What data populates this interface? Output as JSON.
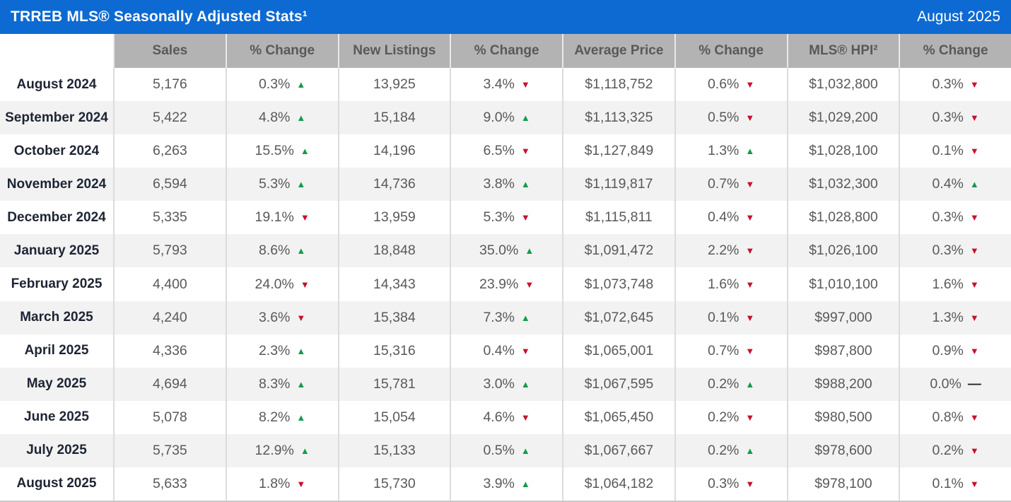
{
  "title_bar": {
    "title": "TRREB MLS® Seasonally Adjusted Stats¹",
    "date": "August 2025"
  },
  "colors": {
    "accent_blue": "#0d6ad2",
    "header_gray": "#b3b3b3",
    "header_text": "#595959",
    "label_text": "#1d2433",
    "value_text": "#595959",
    "up_green": "#149b4a",
    "down_red": "#c8102e",
    "row_alt": "#f2f2f2",
    "divider": "#dcdcdc",
    "bottom_border": "#c9c9c9"
  },
  "table": {
    "columns": [
      "",
      "Sales",
      "% Change",
      "New Listings",
      "% Change",
      "Average Price",
      "% Change",
      "MLS® HPI²",
      "% Change"
    ],
    "icons": {
      "up": "▲",
      "down": "▼",
      "flat": "—"
    },
    "rows": [
      {
        "month": "August 2024",
        "cells": [
          {
            "text": "5,176"
          },
          {
            "text": "0.3%",
            "dir": "up"
          },
          {
            "text": "13,925"
          },
          {
            "text": "3.4%",
            "dir": "down"
          },
          {
            "text": "$1,118,752"
          },
          {
            "text": "0.6%",
            "dir": "down"
          },
          {
            "text": "$1,032,800"
          },
          {
            "text": "0.3%",
            "dir": "down"
          }
        ]
      },
      {
        "month": "September 2024",
        "cells": [
          {
            "text": "5,422"
          },
          {
            "text": "4.8%",
            "dir": "up"
          },
          {
            "text": "15,184"
          },
          {
            "text": "9.0%",
            "dir": "up"
          },
          {
            "text": "$1,113,325"
          },
          {
            "text": "0.5%",
            "dir": "down"
          },
          {
            "text": "$1,029,200"
          },
          {
            "text": "0.3%",
            "dir": "down"
          }
        ]
      },
      {
        "month": "October 2024",
        "cells": [
          {
            "text": "6,263"
          },
          {
            "text": "15.5%",
            "dir": "up"
          },
          {
            "text": "14,196"
          },
          {
            "text": "6.5%",
            "dir": "down"
          },
          {
            "text": "$1,127,849"
          },
          {
            "text": "1.3%",
            "dir": "up"
          },
          {
            "text": "$1,028,100"
          },
          {
            "text": "0.1%",
            "dir": "down"
          }
        ]
      },
      {
        "month": "November 2024",
        "cells": [
          {
            "text": "6,594"
          },
          {
            "text": "5.3%",
            "dir": "up"
          },
          {
            "text": "14,736"
          },
          {
            "text": "3.8%",
            "dir": "up"
          },
          {
            "text": "$1,119,817"
          },
          {
            "text": "0.7%",
            "dir": "down"
          },
          {
            "text": "$1,032,300"
          },
          {
            "text": "0.4%",
            "dir": "up"
          }
        ]
      },
      {
        "month": "December 2024",
        "cells": [
          {
            "text": "5,335"
          },
          {
            "text": "19.1%",
            "dir": "down"
          },
          {
            "text": "13,959"
          },
          {
            "text": "5.3%",
            "dir": "down"
          },
          {
            "text": "$1,115,811"
          },
          {
            "text": "0.4%",
            "dir": "down"
          },
          {
            "text": "$1,028,800"
          },
          {
            "text": "0.3%",
            "dir": "down"
          }
        ]
      },
      {
        "month": "January 2025",
        "cells": [
          {
            "text": "5,793"
          },
          {
            "text": "8.6%",
            "dir": "up"
          },
          {
            "text": "18,848"
          },
          {
            "text": "35.0%",
            "dir": "up"
          },
          {
            "text": "$1,091,472"
          },
          {
            "text": "2.2%",
            "dir": "down"
          },
          {
            "text": "$1,026,100"
          },
          {
            "text": "0.3%",
            "dir": "down"
          }
        ]
      },
      {
        "month": "February 2025",
        "cells": [
          {
            "text": "4,400"
          },
          {
            "text": "24.0%",
            "dir": "down"
          },
          {
            "text": "14,343"
          },
          {
            "text": "23.9%",
            "dir": "down"
          },
          {
            "text": "$1,073,748"
          },
          {
            "text": "1.6%",
            "dir": "down"
          },
          {
            "text": "$1,010,100"
          },
          {
            "text": "1.6%",
            "dir": "down"
          }
        ]
      },
      {
        "month": "March 2025",
        "cells": [
          {
            "text": "4,240"
          },
          {
            "text": "3.6%",
            "dir": "down"
          },
          {
            "text": "15,384"
          },
          {
            "text": "7.3%",
            "dir": "up"
          },
          {
            "text": "$1,072,645"
          },
          {
            "text": "0.1%",
            "dir": "down"
          },
          {
            "text": "$997,000"
          },
          {
            "text": "1.3%",
            "dir": "down"
          }
        ]
      },
      {
        "month": "April 2025",
        "cells": [
          {
            "text": "4,336"
          },
          {
            "text": "2.3%",
            "dir": "up"
          },
          {
            "text": "15,316"
          },
          {
            "text": "0.4%",
            "dir": "down"
          },
          {
            "text": "$1,065,001"
          },
          {
            "text": "0.7%",
            "dir": "down"
          },
          {
            "text": "$987,800"
          },
          {
            "text": "0.9%",
            "dir": "down"
          }
        ]
      },
      {
        "month": "May 2025",
        "cells": [
          {
            "text": "4,694"
          },
          {
            "text": "8.3%",
            "dir": "up"
          },
          {
            "text": "15,781"
          },
          {
            "text": "3.0%",
            "dir": "up"
          },
          {
            "text": "$1,067,595"
          },
          {
            "text": "0.2%",
            "dir": "up"
          },
          {
            "text": "$988,200"
          },
          {
            "text": "0.0%",
            "dir": "flat"
          }
        ]
      },
      {
        "month": "June 2025",
        "cells": [
          {
            "text": "5,078"
          },
          {
            "text": "8.2%",
            "dir": "up"
          },
          {
            "text": "15,054"
          },
          {
            "text": "4.6%",
            "dir": "down"
          },
          {
            "text": "$1,065,450"
          },
          {
            "text": "0.2%",
            "dir": "down"
          },
          {
            "text": "$980,500"
          },
          {
            "text": "0.8%",
            "dir": "down"
          }
        ]
      },
      {
        "month": "July 2025",
        "cells": [
          {
            "text": "5,735"
          },
          {
            "text": "12.9%",
            "dir": "up"
          },
          {
            "text": "15,133"
          },
          {
            "text": "0.5%",
            "dir": "up"
          },
          {
            "text": "$1,067,667"
          },
          {
            "text": "0.2%",
            "dir": "up"
          },
          {
            "text": "$978,600"
          },
          {
            "text": "0.2%",
            "dir": "down"
          }
        ]
      },
      {
        "month": "August 2025",
        "cells": [
          {
            "text": "5,633"
          },
          {
            "text": "1.8%",
            "dir": "down"
          },
          {
            "text": "15,730"
          },
          {
            "text": "3.9%",
            "dir": "up"
          },
          {
            "text": "$1,064,182"
          },
          {
            "text": "0.3%",
            "dir": "down"
          },
          {
            "text": "$978,100"
          },
          {
            "text": "0.1%",
            "dir": "down"
          }
        ]
      }
    ]
  },
  "chart_data": {
    "type": "table",
    "title": "TRREB MLS® Seasonally Adjusted Stats¹",
    "period_label": "August 2025",
    "columns": [
      "Month",
      "Sales",
      "Sales % Change",
      "New Listings",
      "New Listings % Change",
      "Average Price",
      "Average Price % Change",
      "MLS® HPI²",
      "MLS® HPI % Change"
    ],
    "rows": [
      [
        "August 2024",
        "5,176",
        "0.3% ▲",
        "13,925",
        "3.4% ▼",
        "$1,118,752",
        "0.6% ▼",
        "$1,032,800",
        "0.3% ▼"
      ],
      [
        "September 2024",
        "5,422",
        "4.8% ▲",
        "15,184",
        "9.0% ▲",
        "$1,113,325",
        "0.5% ▼",
        "$1,029,200",
        "0.3% ▼"
      ],
      [
        "October 2024",
        "6,263",
        "15.5% ▲",
        "14,196",
        "6.5% ▼",
        "$1,127,849",
        "1.3% ▲",
        "$1,028,100",
        "0.1% ▼"
      ],
      [
        "November 2024",
        "6,594",
        "5.3% ▲",
        "14,736",
        "3.8% ▲",
        "$1,119,817",
        "0.7% ▼",
        "$1,032,300",
        "0.4% ▲"
      ],
      [
        "December 2024",
        "5,335",
        "19.1% ▼",
        "13,959",
        "5.3% ▼",
        "$1,115,811",
        "0.4% ▼",
        "$1,028,800",
        "0.3% ▼"
      ],
      [
        "January 2025",
        "5,793",
        "8.6% ▲",
        "18,848",
        "35.0% ▲",
        "$1,091,472",
        "2.2% ▼",
        "$1,026,100",
        "0.3% ▼"
      ],
      [
        "February 2025",
        "4,400",
        "24.0% ▼",
        "14,343",
        "23.9% ▼",
        "$1,073,748",
        "1.6% ▼",
        "$1,010,100",
        "1.6% ▼"
      ],
      [
        "March 2025",
        "4,240",
        "3.6% ▼",
        "15,384",
        "7.3% ▲",
        "$1,072,645",
        "0.1% ▼",
        "$997,000",
        "1.3% ▼"
      ],
      [
        "April 2025",
        "4,336",
        "2.3% ▲",
        "15,316",
        "0.4% ▼",
        "$1,065,001",
        "0.7% ▼",
        "$987,800",
        "0.9% ▼"
      ],
      [
        "May 2025",
        "4,694",
        "8.3% ▲",
        "15,781",
        "3.0% ▲",
        "$1,067,595",
        "0.2% ▲",
        "$988,200",
        "0.0% —"
      ],
      [
        "June 2025",
        "5,078",
        "8.2% ▲",
        "15,054",
        "4.6% ▼",
        "$1,065,450",
        "0.2% ▼",
        "$980,500",
        "0.8% ▼"
      ],
      [
        "July 2025",
        "5,735",
        "12.9% ▲",
        "15,133",
        "0.5% ▲",
        "$1,067,667",
        "0.2% ▲",
        "$978,600",
        "0.2% ▼"
      ],
      [
        "August 2025",
        "5,633",
        "1.8% ▼",
        "15,730",
        "3.9% ▲",
        "$1,064,182",
        "0.3% ▼",
        "$978,100",
        "0.1% ▼"
      ]
    ]
  }
}
